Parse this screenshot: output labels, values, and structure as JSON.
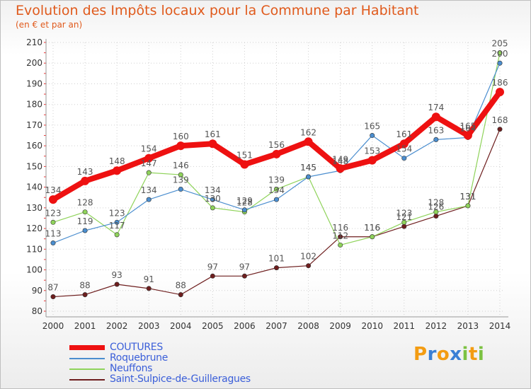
{
  "title": "Evolution des Impôts locaux pour la Commune par Habitant",
  "subtitle": "(en € et par an)",
  "logo": {
    "letters": [
      "P",
      "r",
      "o",
      "x",
      "i",
      "t",
      "i"
    ],
    "colors": [
      "#f39c12",
      "#3a7fd5",
      "#f39c12",
      "#3a7fd5",
      "#7cc242",
      "#f39c12",
      "#7cc242"
    ]
  },
  "chart_data": {
    "type": "line",
    "x": [
      2000,
      2001,
      2002,
      2003,
      2004,
      2005,
      2006,
      2007,
      2008,
      2009,
      2010,
      2011,
      2012,
      2013,
      2014
    ],
    "ylim": [
      80,
      210
    ],
    "yticks": [
      80,
      90,
      100,
      110,
      120,
      130,
      140,
      150,
      160,
      170,
      180,
      190,
      200,
      210
    ],
    "grid": true,
    "legend_position": "bottom-left",
    "series": [
      {
        "name": "COUTURES",
        "color": "#ee1111",
        "values": [
          134,
          143,
          148,
          154,
          160,
          161,
          151,
          156,
          162,
          149,
          153,
          161,
          174,
          165,
          186
        ]
      },
      {
        "name": "Roquebrune",
        "color": "#4b8ecf",
        "values": [
          113,
          119,
          123,
          134,
          139,
          134,
          129,
          134,
          145,
          148,
          165,
          154,
          163,
          164,
          200
        ]
      },
      {
        "name": "Neuffons",
        "color": "#8fd35a",
        "values": [
          123,
          128,
          117,
          147,
          146,
          130,
          128,
          139,
          145,
          112,
          116,
          123,
          128,
          131,
          205
        ]
      },
      {
        "name": "Saint-Sulpice-de-Guilleragues",
        "color": "#6e1e1e",
        "values": [
          87,
          88,
          93,
          91,
          88,
          97,
          97,
          101,
          102,
          116,
          116,
          121,
          126,
          131,
          168
        ]
      }
    ]
  }
}
